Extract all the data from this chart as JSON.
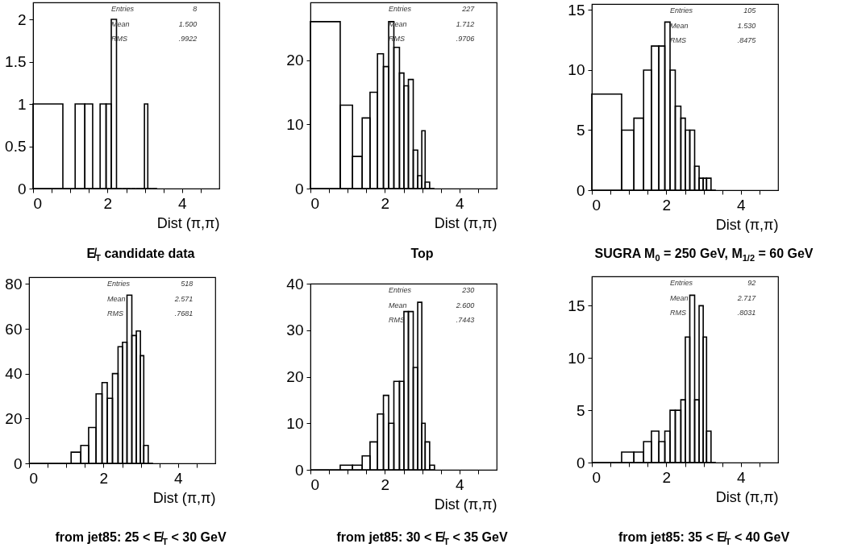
{
  "chart_data": [
    {
      "type": "histogram",
      "title": "E̸$_{T}$ candidate data",
      "xlabel": "Dist (π,π)",
      "color": "#000000",
      "bins": [
        0,
        0.8,
        1.13,
        1.39,
        1.6,
        1.8,
        1.96,
        2.1,
        2.24,
        2.39,
        2.51,
        2.63,
        2.76,
        2.88,
        2.99,
        3.08,
        3.2,
        3.33
      ],
      "values": [
        1,
        0,
        1,
        1,
        0,
        1,
        1,
        2,
        0,
        0,
        0,
        0,
        0,
        0,
        1,
        0,
        0
      ],
      "xlim": [
        0,
        5
      ],
      "xticks": [
        0,
        {
          "value": 0.5,
          "label": null
        },
        {
          "value": 1,
          "label": null
        },
        {
          "value": 1.5,
          "label": null
        },
        2,
        {
          "value": 2.5,
          "label": null
        },
        {
          "value": 3,
          "label": null
        },
        {
          "value": 3.5,
          "label": null
        },
        4,
        {
          "value": 4.5,
          "label": null
        }
      ],
      "ylim": [
        0,
        2.2
      ],
      "yticks": [
        0,
        0.5,
        1,
        1.5,
        2
      ],
      "annotations": [
        "Entries",
        "8",
        "Mean",
        "1.500",
        "RMS",
        ".9922"
      ]
    },
    {
      "type": "histogram",
      "title": "Top",
      "xlabel": "Dist (π,π)",
      "color": "#000000",
      "bins": [
        0,
        0.8,
        1.13,
        1.39,
        1.6,
        1.8,
        1.96,
        2.1,
        2.24,
        2.39,
        2.51,
        2.63,
        2.76,
        2.88,
        2.99,
        3.08,
        3.2,
        3.33
      ],
      "values": [
        26,
        13,
        5,
        11,
        15,
        21,
        19,
        26,
        22,
        18,
        16,
        17,
        6,
        2,
        9,
        1,
        0
      ],
      "xlim": [
        0,
        5
      ],
      "xticks": [
        0,
        {
          "value": 0.5,
          "label": null
        },
        {
          "value": 1,
          "label": null
        },
        {
          "value": 1.5,
          "label": null
        },
        2,
        {
          "value": 2.5,
          "label": null
        },
        {
          "value": 3,
          "label": null
        },
        {
          "value": 3.5,
          "label": null
        },
        4,
        {
          "value": 4.5,
          "label": null
        }
      ],
      "ylim": [
        0,
        29
      ],
      "yticks": [
        0,
        10,
        20
      ],
      "annotations": [
        "Entries",
        "227",
        "Mean",
        "1.712",
        "RMS",
        ".9706"
      ]
    },
    {
      "type": "histogram",
      "title": "SUGRA M$_{0}$ = 250 GeV, M$_{1/2}$ = 60 GeV",
      "xlabel": "Dist (π,π)",
      "color": "#000000",
      "bins": [
        0,
        0.8,
        1.13,
        1.39,
        1.6,
        1.8,
        1.96,
        2.1,
        2.24,
        2.39,
        2.51,
        2.63,
        2.76,
        2.88,
        2.99,
        3.08,
        3.2,
        3.33
      ],
      "values": [
        8,
        5,
        6,
        10,
        12,
        12,
        14,
        10,
        7,
        6,
        5,
        5,
        2,
        1,
        1,
        1,
        0
      ],
      "xlim": [
        0,
        5
      ],
      "xticks": [
        0,
        {
          "value": 0.5,
          "label": null
        },
        {
          "value": 1,
          "label": null
        },
        {
          "value": 1.5,
          "label": null
        },
        2,
        {
          "value": 2.5,
          "label": null
        },
        {
          "value": 3,
          "label": null
        },
        {
          "value": 3.5,
          "label": null
        },
        4,
        {
          "value": 4.5,
          "label": null
        }
      ],
      "ylim": [
        0,
        15.5
      ],
      "yticks": [
        0,
        5,
        10,
        15
      ],
      "annotations": [
        "Entries",
        "105",
        "Mean",
        "1.530",
        "RMS",
        ".8475"
      ]
    },
    {
      "type": "histogram",
      "title": "from jet85: 25 < E̸$_{T}$ < 30 GeV",
      "xlabel": "Dist (π,π)",
      "color": "#000000",
      "bins": [
        0,
        0.8,
        1.13,
        1.39,
        1.6,
        1.8,
        1.96,
        2.1,
        2.24,
        2.39,
        2.51,
        2.63,
        2.76,
        2.88,
        2.99,
        3.08,
        3.2,
        3.33
      ],
      "values": [
        0,
        0,
        5,
        8,
        16,
        31,
        36,
        29,
        40,
        52,
        54,
        75,
        57,
        59,
        48,
        8,
        0
      ],
      "xlim": [
        0,
        5
      ],
      "xticks": [
        0,
        {
          "value": 0.5,
          "label": null
        },
        {
          "value": 1,
          "label": null
        },
        {
          "value": 1.5,
          "label": null
        },
        2,
        {
          "value": 2.5,
          "label": null
        },
        {
          "value": 3,
          "label": null
        },
        {
          "value": 3.5,
          "label": null
        },
        4,
        {
          "value": 4.5,
          "label": null
        }
      ],
      "ylim": [
        0,
        83
      ],
      "yticks": [
        0,
        20,
        40,
        60,
        80
      ],
      "annotations": [
        "Entries",
        "518",
        "Mean",
        "2.571",
        "RMS",
        ".7681"
      ]
    },
    {
      "type": "histogram",
      "title": "from jet85: 30 < E̸$_{T}$ < 35 GeV",
      "xlabel": "Dist (π,π)",
      "color": "#000000",
      "bins": [
        0,
        0.8,
        1.13,
        1.39,
        1.6,
        1.8,
        1.96,
        2.1,
        2.24,
        2.39,
        2.51,
        2.63,
        2.76,
        2.88,
        2.99,
        3.08,
        3.2,
        3.33
      ],
      "values": [
        0,
        1,
        1,
        3,
        6,
        12,
        16,
        10,
        19,
        19,
        34,
        34,
        22,
        36,
        10,
        6,
        1
      ],
      "xlim": [
        0,
        5
      ],
      "xticks": [
        0,
        {
          "value": 0.5,
          "label": null
        },
        {
          "value": 1,
          "label": null
        },
        {
          "value": 1.5,
          "label": null
        },
        2,
        {
          "value": 2.5,
          "label": null
        },
        {
          "value": 3,
          "label": null
        },
        {
          "value": 3.5,
          "label": null
        },
        4,
        {
          "value": 4.5,
          "label": null
        }
      ],
      "ylim": [
        0,
        40
      ],
      "yticks": [
        0,
        10,
        20,
        30,
        40
      ],
      "annotations": [
        "Entries",
        "230",
        "Mean",
        "2.600",
        "RMS",
        ".7443"
      ]
    },
    {
      "type": "histogram",
      "title": "from jet85: 35 < E̸$_{T}$ < 40 GeV",
      "xlabel": "Dist (π,π)",
      "color": "#000000",
      "bins": [
        0,
        0.8,
        1.13,
        1.39,
        1.6,
        1.8,
        1.96,
        2.1,
        2.24,
        2.39,
        2.51,
        2.63,
        2.76,
        2.88,
        2.99,
        3.08,
        3.2,
        3.33
      ],
      "values": [
        0,
        1,
        1,
        2,
        3,
        2,
        3,
        5,
        5,
        6,
        12,
        16,
        6,
        15,
        12,
        3,
        0
      ],
      "xlim": [
        0,
        5
      ],
      "xticks": [
        0,
        {
          "value": 0.5,
          "label": null
        },
        {
          "value": 1,
          "label": null
        },
        {
          "value": 1.5,
          "label": null
        },
        2,
        {
          "value": 2.5,
          "label": null
        },
        {
          "value": 3,
          "label": null
        },
        {
          "value": 3.5,
          "label": null
        },
        4,
        {
          "value": 4.5,
          "label": null
        }
      ],
      "ylim": [
        0,
        17.8
      ],
      "yticks": [
        0,
        5,
        10,
        15
      ],
      "annotations": [
        "Entries",
        "92",
        "Mean",
        "2.717",
        "RMS",
        ".8031"
      ]
    }
  ]
}
